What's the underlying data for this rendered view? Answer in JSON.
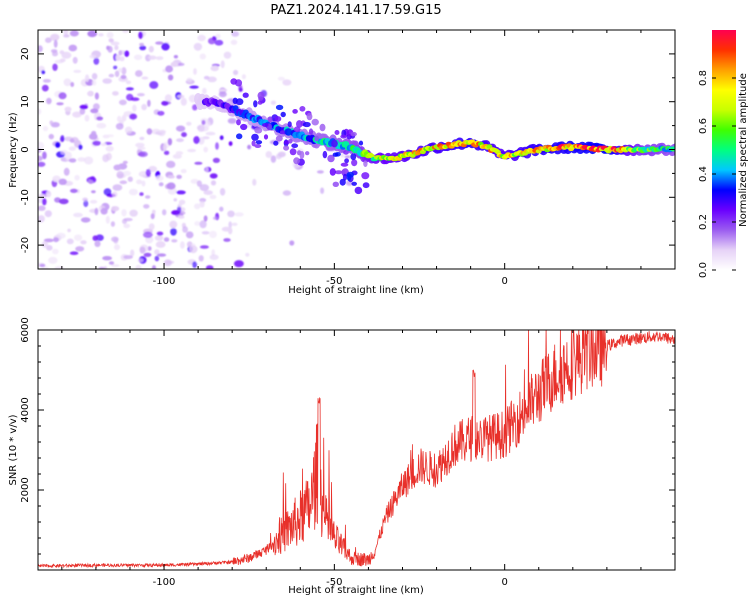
{
  "title": "PAZ1.2024.141.17.59.G15",
  "chart_data": [
    {
      "type": "heatmap",
      "xlabel": "Height of straight line (km)",
      "ylabel": "Frequency (Hz)",
      "xlim": [
        -137,
        50
      ],
      "ylim": [
        -25,
        25
      ],
      "xticks": [
        -100,
        -50,
        0
      ],
      "yticks": [
        20,
        10,
        0,
        -10,
        -20
      ],
      "colorbar": {
        "label": "Normalized spectral amplitude",
        "range": [
          0,
          1
        ],
        "ticks": [
          0.0,
          0.2,
          0.4,
          0.6,
          0.8
        ],
        "colors": [
          "#ffffff",
          "#e6d2f7",
          "#9b5cf0",
          "#6a00ff",
          "#0000ff",
          "#00c8ff",
          "#00ff80",
          "#40ff00",
          "#c8ff00",
          "#ffff00",
          "#ffa000",
          "#ff3000",
          "#ff0050"
        ]
      },
      "ridge": {
        "x": [
          -85,
          -75,
          -65,
          -55,
          -45,
          -38,
          -30,
          -20,
          -10,
          -5,
          0,
          10,
          20,
          30,
          40,
          50
        ],
        "freq": [
          10,
          7,
          4,
          2,
          0.5,
          -2,
          -1.5,
          0.5,
          1.5,
          0.5,
          -1.5,
          0,
          0.5,
          0,
          0,
          0
        ],
        "amplitude": [
          0.25,
          0.35,
          0.4,
          0.45,
          0.5,
          0.7,
          0.75,
          0.8,
          0.85,
          0.8,
          0.75,
          0.85,
          0.9,
          0.95,
          0.6,
          0.5
        ]
      }
    },
    {
      "type": "line",
      "xlabel": "Height of straight line (km)",
      "ylabel": "SNR (10 * v/v)",
      "xlim": [
        -137,
        50
      ],
      "ylim": [
        0,
        6000
      ],
      "xticks": [
        -100,
        -50,
        0
      ],
      "yticks": [
        2000,
        4000,
        6000
      ],
      "color": "#e8302a",
      "series": [
        {
          "x": [
            -137,
            -120,
            -100,
            -90,
            -80,
            -75,
            -70,
            -65,
            -60,
            -57,
            -55,
            -53,
            -50,
            -45,
            -40,
            -38,
            -35,
            -30,
            -25,
            -20,
            -15,
            -10,
            -5,
            0,
            5,
            10,
            15,
            20,
            25,
            30,
            35,
            40,
            45,
            50
          ],
          "values": [
            100,
            120,
            120,
            150,
            200,
            300,
            500,
            900,
            1300,
            1600,
            2500,
            1300,
            800,
            300,
            250,
            500,
            1300,
            2100,
            2600,
            2500,
            3100,
            3300,
            3300,
            3400,
            3900,
            4400,
            4900,
            5200,
            5500,
            5600,
            5750,
            5800,
            5850,
            5750
          ],
          "peaks": {
            "x": [
              -54.5,
              -9
            ],
            "values": [
              4300,
              5000
            ]
          }
        }
      ]
    }
  ]
}
